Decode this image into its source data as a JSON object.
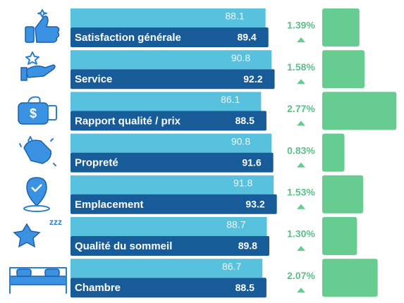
{
  "chart_data": {
    "type": "bar",
    "categories": [
      "Satisfaction générale",
      "Service",
      "Rapport qualité / prix",
      "Propreté",
      "Emplacement",
      "Qualité du sommeil",
      "Chambre"
    ],
    "xlim": [
      0,
      100
    ],
    "x2lim": [
      0,
      3
    ],
    "series": [
      {
        "color": "#58c1de",
        "values": [
          88.1,
          90.8,
          86.1,
          90.8,
          91.8,
          88.7,
          86.7
        ]
      },
      {
        "color": "#175b99",
        "values": [
          89.4,
          92.2,
          88.5,
          91.6,
          93.2,
          89.8,
          88.5
        ]
      },
      {
        "color": "#66cc8f",
        "axis": "x2",
        "values": [
          1.39,
          1.58,
          2.77,
          0.83,
          1.53,
          1.3,
          2.07
        ],
        "value_labels": [
          "1.39%",
          "1.58%",
          "2.77%",
          "0.83%",
          "1.53%",
          "1.30%",
          "2.07%"
        ]
      }
    ]
  }
}
